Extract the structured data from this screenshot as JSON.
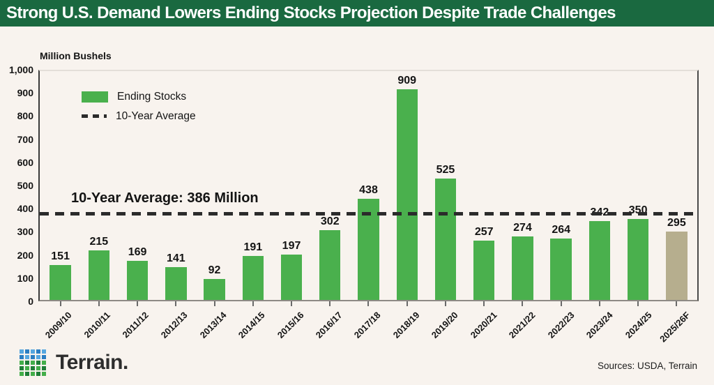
{
  "header": {
    "title": "Strong U.S. Demand Lowers Ending Stocks Projection Despite Trade Challenges"
  },
  "chart_data": {
    "type": "bar",
    "title": "Strong U.S. Demand Lowers Ending Stocks Projection Despite Trade Challenges",
    "y_axis_title": "Million Bushels",
    "series_name": "Ending Stocks",
    "categories": [
      "2009/10",
      "2010/11",
      "2011/12",
      "2012/13",
      "2013/14",
      "2014/15",
      "2015/16",
      "2016/17",
      "2017/18",
      "2018/19",
      "2019/20",
      "2020/21",
      "2021/22",
      "2022/23",
      "2023/24",
      "2024/25",
      "2025/26F"
    ],
    "values": [
      151,
      215,
      169,
      141,
      92,
      191,
      197,
      302,
      438,
      909,
      525,
      257,
      274,
      264,
      342,
      350,
      295
    ],
    "forecast_category": "2025/26F",
    "average_value": 386,
    "average_annotation": "10-Year Average: 386 Million",
    "legend": [
      {
        "label": "Ending Stocks",
        "swatch": "green-bar-swatch"
      },
      {
        "label": "10-Year Average",
        "swatch": "dashed-line-swatch"
      }
    ],
    "legend_position": "top-left",
    "ylim": [
      0,
      1000
    ],
    "ytick_labels": [
      "1,000",
      "900",
      "800",
      "700",
      "600",
      "500",
      "400",
      "300",
      "200",
      "100",
      "0"
    ],
    "grid": false,
    "colors": {
      "bar": "#4ab04d",
      "forecast_bar": "#b6ae8e",
      "average_line": "#2b2b2b",
      "header_background": "#1a6940",
      "page_background": "#f8f3ee"
    }
  },
  "footer": {
    "logo_text": "Terrain.",
    "sources": "Sources: USDA, Terrain",
    "logo_colors": {
      "blue_light": "#56a7e0",
      "blue_dark": "#2b7ec2",
      "green_light": "#43ae4a",
      "green_dark": "#1f7e37"
    }
  }
}
